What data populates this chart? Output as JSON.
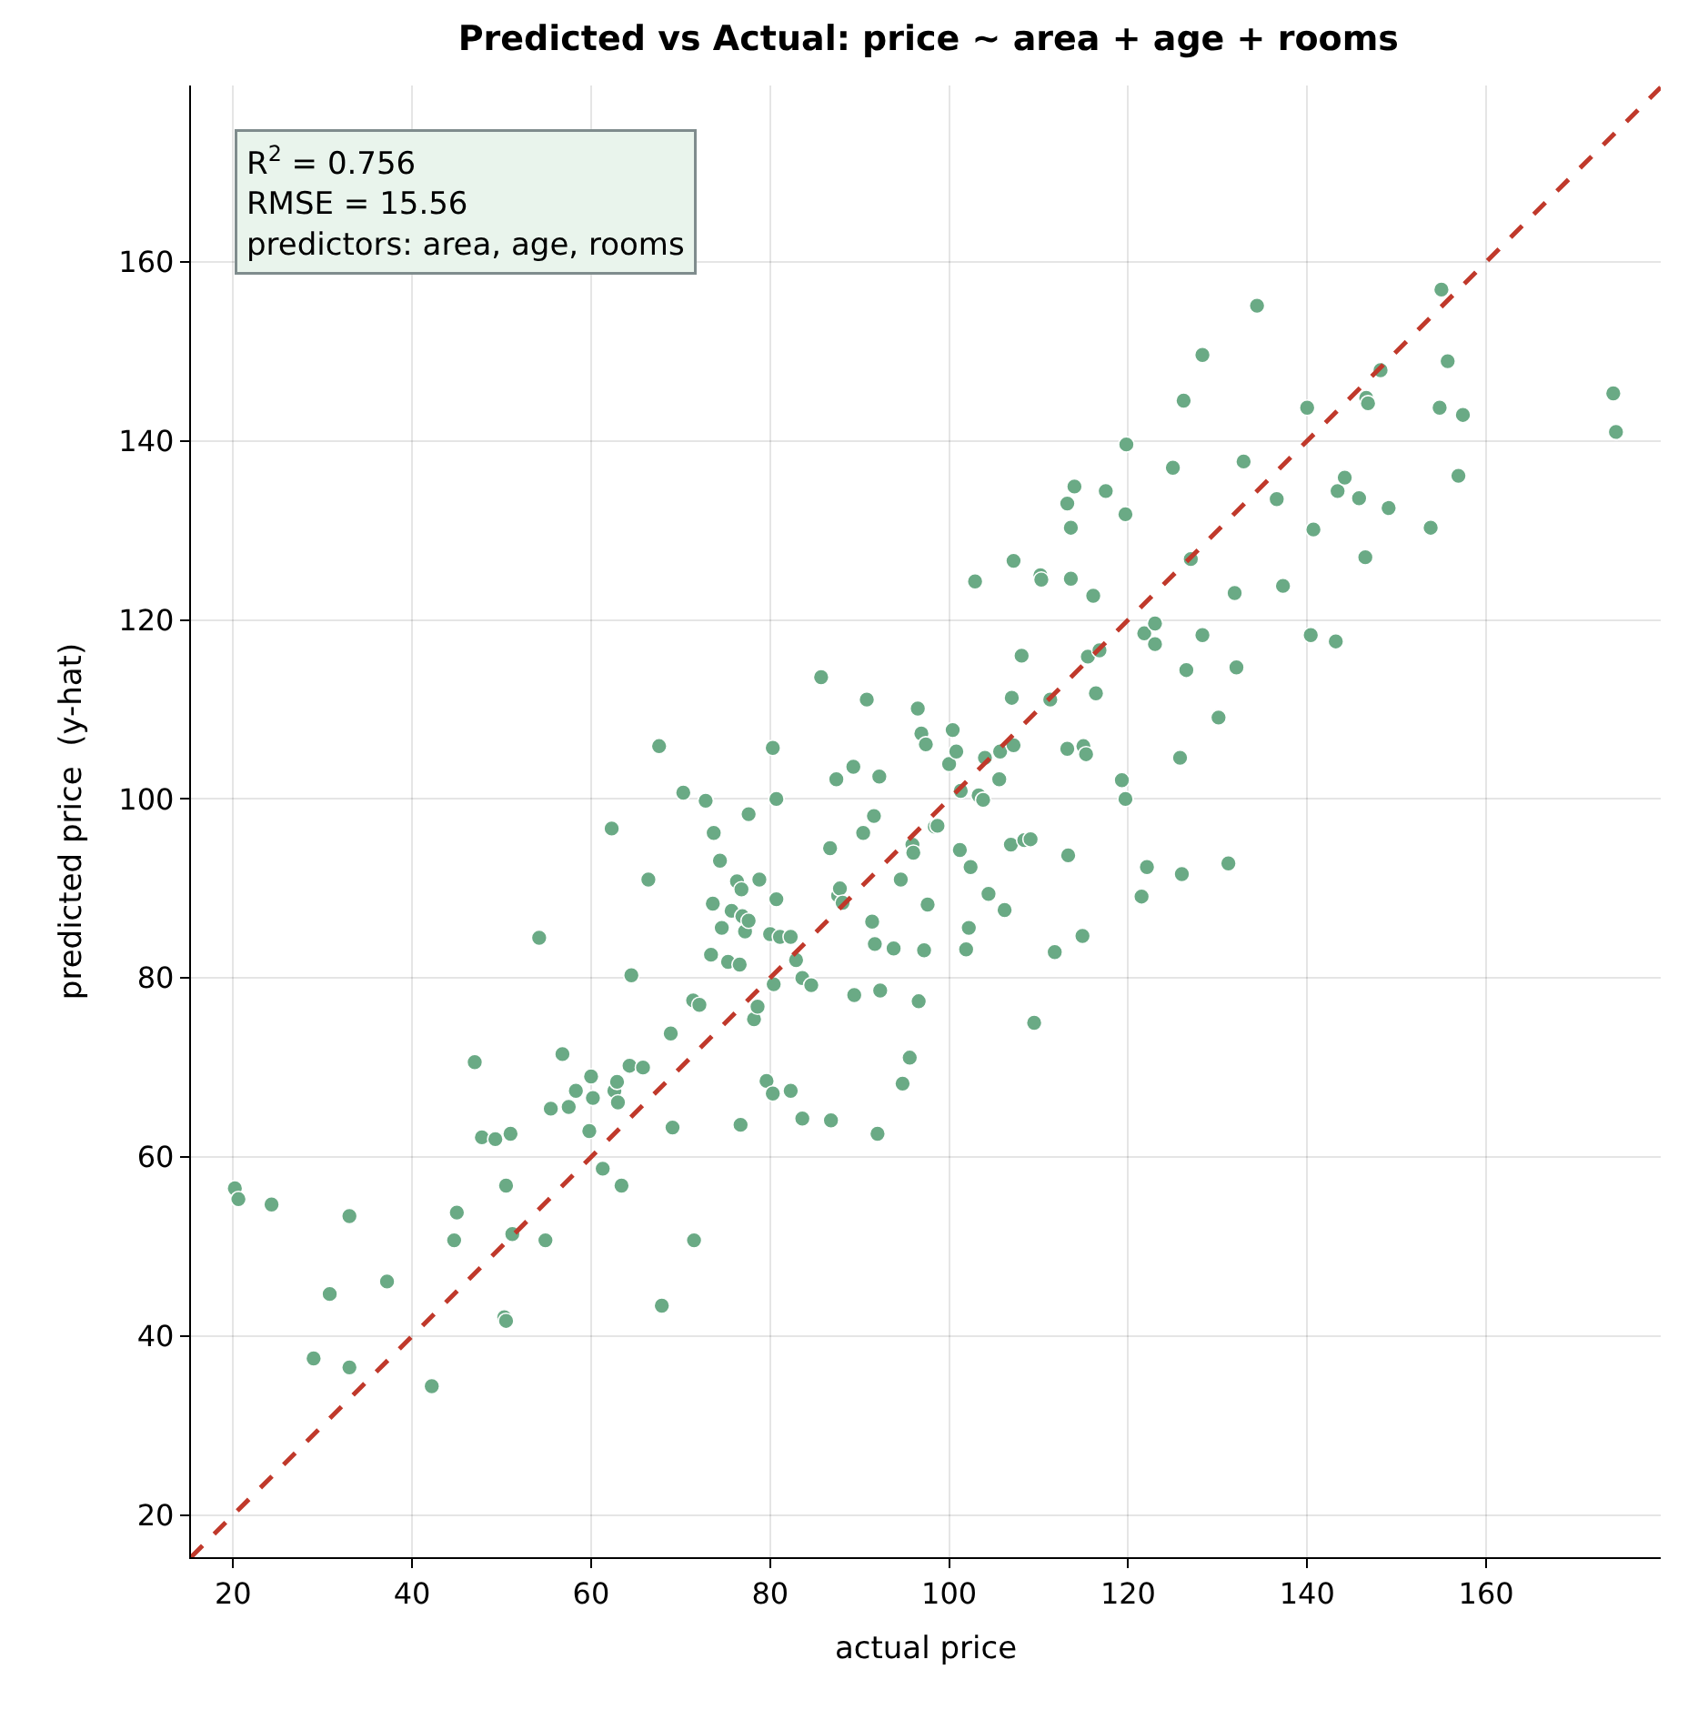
{
  "chart_data": {
    "type": "scatter",
    "title": "Predicted vs Actual: price ~ area + age + rooms",
    "xlabel": "actual price",
    "ylabel": "predicted price  (y-hat)",
    "xlim": [
      15.3,
      179.5
    ],
    "ylim": [
      15.3,
      179.7
    ],
    "xticks": [
      20,
      40,
      60,
      80,
      100,
      120,
      140,
      160
    ],
    "yticks": [
      20,
      40,
      60,
      80,
      100,
      120,
      140,
      160
    ],
    "grid": true,
    "marker": "circle",
    "annotations": [
      "R$^{2}$ = 0.756\nRMSE = 15.56\npredictors: area, age, rooms"
    ],
    "series": [
      {
        "color": "#6aaa85",
        "x": [
          20.2,
          20.6,
          24.3,
          29,
          30.8,
          33,
          33,
          37.2,
          42.2,
          44.7,
          45,
          47,
          47.8,
          49.3,
          50.3,
          50.5,
          50.5,
          51,
          51.2,
          54.2,
          54.9,
          55.5,
          56.8,
          57.5,
          58.3,
          59.8,
          60,
          60.2,
          61.3,
          62.3,
          62.6,
          62.9,
          63,
          63.4,
          64.3,
          64.5,
          65.8,
          66.4,
          67.6,
          67.9,
          68.9,
          69.1,
          70.3,
          71.4,
          71.5,
          72.1,
          72.8,
          73.4,
          73.6,
          73.7,
          74.4,
          74.6,
          75.3,
          75.7,
          76.3,
          76.6,
          76.7,
          76.8,
          76.9,
          77.2,
          77.6,
          77.6,
          78.2,
          78.6,
          78.8,
          79.6,
          80,
          80.3,
          80.3,
          80.4,
          80.7,
          80.7,
          81.1,
          82.3,
          82.3,
          82.9,
          83.6,
          83.6,
          84.6,
          85.7,
          86.7,
          86.8,
          87.4,
          87.6,
          87.8,
          88.1,
          89.3,
          89.4,
          90.4,
          90.8,
          91.4,
          91.6,
          91.7,
          92,
          92.2,
          92.3,
          93.8,
          94.6,
          94.8,
          95.6,
          95.9,
          96,
          96.5,
          96.6,
          96.9,
          97.2,
          97.4,
          97.6,
          98.4,
          98.7,
          100,
          100.4,
          100.8,
          101.2,
          101.3,
          101.9,
          102.2,
          102.4,
          102.9,
          103.3,
          103.8,
          104,
          104.4,
          105.6,
          105.7,
          106.2,
          106.9,
          107,
          107.2,
          107.2,
          108.1,
          108.4,
          109.1,
          109.5,
          110.2,
          110.3,
          111.3,
          111.8,
          113.2,
          113.2,
          113.3,
          113.6,
          113.6,
          114,
          114.9,
          115,
          115.3,
          115.5,
          116.1,
          116.4,
          116.8,
          117.5,
          119.3,
          119.7,
          119.7,
          119.8,
          121.5,
          121.8,
          122.1,
          123,
          123,
          125,
          125.8,
          126,
          126.2,
          126.5,
          127,
          128.3,
          128.3,
          130.1,
          131.2,
          131.9,
          132.1,
          132.9,
          134.4,
          136.6,
          137.3,
          140,
          140.4,
          140.7,
          143.2,
          143.4,
          144.2,
          145.8,
          146.5,
          146.6,
          146.8,
          148.2,
          149.1,
          153.8,
          154.8,
          155,
          155.7,
          156.9,
          157.4,
          174.2,
          174.5
        ],
        "values": [
          56.5,
          55.3,
          54.7,
          37.5,
          44.7,
          36.5,
          53.4,
          46.1,
          34.4,
          50.7,
          53.8,
          70.6,
          62.2,
          62,
          42.1,
          41.7,
          56.8,
          62.6,
          51.4,
          84.5,
          50.7,
          65.4,
          71.5,
          65.6,
          67.4,
          62.9,
          69,
          66.6,
          58.7,
          96.7,
          67.4,
          68.4,
          66.1,
          56.8,
          70.2,
          80.3,
          70,
          91,
          105.9,
          43.4,
          73.8,
          63.3,
          100.7,
          77.5,
          50.7,
          77,
          99.8,
          82.6,
          88.3,
          96.2,
          93.1,
          85.6,
          81.8,
          87.5,
          90.8,
          81.5,
          63.6,
          89.9,
          86.9,
          85.2,
          98.3,
          86.4,
          75.4,
          76.8,
          91,
          68.5,
          84.9,
          105.7,
          67.1,
          79.3,
          100,
          88.8,
          84.6,
          67.4,
          84.6,
          82,
          64.3,
          80,
          79.2,
          113.6,
          94.5,
          64.1,
          102.2,
          89.2,
          90,
          88.4,
          103.6,
          78.1,
          96.2,
          111.1,
          86.3,
          98.1,
          83.8,
          62.6,
          102.5,
          78.6,
          83.3,
          91,
          68.2,
          71.1,
          94.9,
          94,
          110.1,
          77.4,
          107.3,
          83.1,
          106.1,
          88.2,
          96.9,
          97,
          103.9,
          107.7,
          105.3,
          94.3,
          100.9,
          83.2,
          85.6,
          92.4,
          124.3,
          100.4,
          99.9,
          104.6,
          89.4,
          102.2,
          105.3,
          87.6,
          94.9,
          111.3,
          106,
          126.6,
          116,
          95.4,
          95.5,
          75,
          125,
          124.5,
          111.1,
          82.9,
          133,
          105.6,
          93.7,
          124.6,
          130.3,
          134.9,
          84.7,
          105.9,
          105,
          115.9,
          122.7,
          111.8,
          116.6,
          134.4,
          102.1,
          100,
          131.8,
          139.6,
          89.1,
          118.5,
          92.4,
          119.6,
          117.3,
          137,
          104.6,
          91.6,
          144.5,
          114.4,
          126.8,
          149.6,
          118.3,
          109.1,
          92.8,
          123,
          114.7,
          137.7,
          155.1,
          133.5,
          123.8,
          143.7,
          118.3,
          130.1,
          117.6,
          134.4,
          135.9,
          133.6,
          127,
          144.8,
          144.2,
          147.9,
          132.5,
          130.3,
          143.7,
          156.9,
          148.9,
          136.1,
          142.9,
          145.3,
          141
        ]
      },
      {
        "type": "line",
        "color": "#c0392b",
        "line_style": "dashed",
        "marker": "none",
        "x": [
          15.3,
          179.5
        ],
        "values": [
          15.3,
          179.5
        ]
      }
    ]
  }
}
